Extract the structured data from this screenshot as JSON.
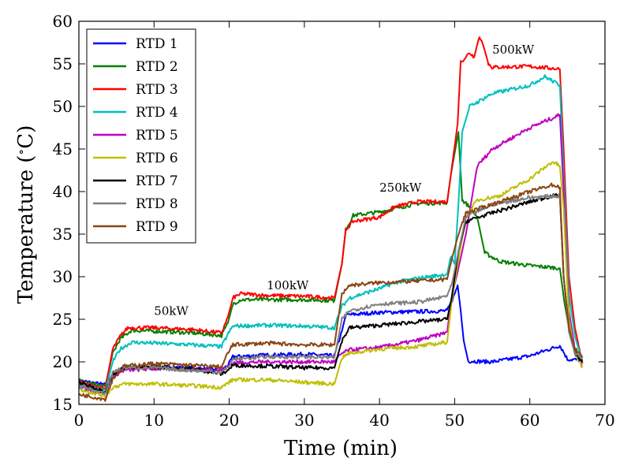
{
  "chart_data": {
    "type": "line",
    "xlabel": "Time (min)",
    "ylabel": "Temperature (°C)",
    "ylabel_parts": {
      "prefix": "Temperature (",
      "degree": "∘",
      "suffix": "C)"
    },
    "xlim": [
      0,
      70
    ],
    "ylim": [
      15,
      60
    ],
    "xticks": [
      0,
      10,
      20,
      30,
      40,
      50,
      60,
      70
    ],
    "yticks": [
      15,
      20,
      25,
      30,
      35,
      40,
      45,
      50,
      55,
      60
    ],
    "grid": false,
    "legend_position": "upper-left",
    "annotations": [
      {
        "text": "50kW",
        "x": 10,
        "y": 25.5
      },
      {
        "text": "100kW",
        "x": 25,
        "y": 28.5
      },
      {
        "text": "250kW",
        "x": 40,
        "y": 40.0
      },
      {
        "text": "500kW",
        "x": 55,
        "y": 56.2
      }
    ],
    "series": [
      {
        "name": "RTD 1",
        "color": "#0000ff",
        "points": [
          [
            0,
            17.8
          ],
          [
            3.5,
            17.3
          ],
          [
            4.5,
            18.6
          ],
          [
            5.5,
            19.2
          ],
          [
            10,
            19.4
          ],
          [
            15,
            19.3
          ],
          [
            19,
            19.0
          ],
          [
            20,
            19.8
          ],
          [
            20.5,
            20.6
          ],
          [
            25,
            20.8
          ],
          [
            30,
            20.9
          ],
          [
            34,
            20.7
          ],
          [
            35,
            23.6
          ],
          [
            35.5,
            25.5
          ],
          [
            40,
            25.8
          ],
          [
            45,
            25.9
          ],
          [
            49,
            26.0
          ],
          [
            49.8,
            27.5
          ],
          [
            50.4,
            29.0
          ],
          [
            50.8,
            26.0
          ],
          [
            51.2,
            22.5
          ],
          [
            51.8,
            20.1
          ],
          [
            55,
            20.0
          ],
          [
            60,
            20.7
          ],
          [
            64,
            21.9
          ],
          [
            64.6,
            21.0
          ],
          [
            65,
            20.3
          ],
          [
            67,
            20.2
          ]
        ]
      },
      {
        "name": "RTD 2",
        "color": "#008000",
        "points": [
          [
            0,
            17.7
          ],
          [
            3.5,
            17.1
          ],
          [
            4.5,
            21.0
          ],
          [
            5.5,
            22.7
          ],
          [
            7,
            23.7
          ],
          [
            10,
            23.6
          ],
          [
            15,
            23.4
          ],
          [
            19,
            23.1
          ],
          [
            19.8,
            24.5
          ],
          [
            20.5,
            26.8
          ],
          [
            21.5,
            27.3
          ],
          [
            25,
            27.3
          ],
          [
            30,
            27.3
          ],
          [
            34,
            27.2
          ],
          [
            35,
            31.5
          ],
          [
            35.5,
            35.5
          ],
          [
            36.5,
            37.2
          ],
          [
            40,
            37.6
          ],
          [
            45,
            38.6
          ],
          [
            49,
            38.7
          ],
          [
            49.5,
            42.0
          ],
          [
            50.5,
            47.0
          ],
          [
            51,
            39.0
          ],
          [
            52,
            38.2
          ],
          [
            53,
            37.0
          ],
          [
            54,
            32.8
          ],
          [
            56,
            31.8
          ],
          [
            60,
            31.3
          ],
          [
            64,
            31.0
          ],
          [
            64.6,
            27.0
          ],
          [
            65.5,
            22.5
          ],
          [
            67,
            20.0
          ]
        ]
      },
      {
        "name": "RTD 3",
        "color": "#ff0000",
        "points": [
          [
            0,
            17.6
          ],
          [
            3.5,
            16.8
          ],
          [
            4.5,
            21.5
          ],
          [
            5.5,
            23.0
          ],
          [
            6.5,
            24.0
          ],
          [
            10,
            24.0
          ],
          [
            15,
            23.8
          ],
          [
            19,
            23.4
          ],
          [
            19.8,
            25.2
          ],
          [
            20.5,
            27.5
          ],
          [
            21.5,
            28.0
          ],
          [
            25,
            27.8
          ],
          [
            30,
            27.7
          ],
          [
            34,
            27.5
          ],
          [
            35,
            31.5
          ],
          [
            35.5,
            35.5
          ],
          [
            36.5,
            36.5
          ],
          [
            40,
            37.0
          ],
          [
            42,
            38.2
          ],
          [
            45,
            38.8
          ],
          [
            49,
            38.8
          ],
          [
            49.5,
            42.0
          ],
          [
            50.4,
            48.0
          ],
          [
            50.8,
            55.2
          ],
          [
            52,
            56.3
          ],
          [
            52.6,
            55.8
          ],
          [
            53.3,
            58.3
          ],
          [
            53.8,
            57.2
          ],
          [
            54.5,
            55.0
          ],
          [
            55,
            54.6
          ],
          [
            60,
            54.7
          ],
          [
            64,
            54.4
          ],
          [
            64.5,
            45.0
          ],
          [
            65.2,
            30.0
          ],
          [
            66,
            24.0
          ],
          [
            67,
            19.8
          ]
        ]
      },
      {
        "name": "RTD 4",
        "color": "#00bfbf",
        "points": [
          [
            0,
            17.4
          ],
          [
            3.5,
            16.5
          ],
          [
            4.5,
            20.0
          ],
          [
            5.5,
            21.5
          ],
          [
            7,
            22.3
          ],
          [
            10,
            22.2
          ],
          [
            15,
            22.0
          ],
          [
            19,
            21.8
          ],
          [
            19.8,
            23.2
          ],
          [
            20.5,
            24.2
          ],
          [
            25,
            24.3
          ],
          [
            30,
            24.2
          ],
          [
            34,
            24.0
          ],
          [
            35,
            26.5
          ],
          [
            36,
            27.5
          ],
          [
            40,
            28.6
          ],
          [
            42,
            29.3
          ],
          [
            45,
            29.8
          ],
          [
            49,
            30.3
          ],
          [
            49.5,
            32.5
          ],
          [
            50,
            31.5
          ],
          [
            50.5,
            38.5
          ],
          [
            51,
            47.0
          ],
          [
            52,
            50.0
          ],
          [
            55,
            51.5
          ],
          [
            60,
            52.5
          ],
          [
            62,
            53.5
          ],
          [
            64,
            52.5
          ],
          [
            64.5,
            42.0
          ],
          [
            65.2,
            28.0
          ],
          [
            66,
            23.0
          ],
          [
            67,
            20.0
          ]
        ]
      },
      {
        "name": "RTD 5",
        "color": "#bf00bf",
        "points": [
          [
            0,
            17.1
          ],
          [
            3.5,
            16.3
          ],
          [
            4.5,
            18.3
          ],
          [
            6,
            19.0
          ],
          [
            10,
            19.2
          ],
          [
            15,
            19.1
          ],
          [
            19,
            19.0
          ],
          [
            19.8,
            19.4
          ],
          [
            20.5,
            19.9
          ],
          [
            25,
            20.0
          ],
          [
            30,
            20.0
          ],
          [
            34,
            20.0
          ],
          [
            35,
            21.0
          ],
          [
            36,
            21.4
          ],
          [
            40,
            21.7
          ],
          [
            45,
            22.5
          ],
          [
            48,
            23.2
          ],
          [
            49,
            23.5
          ],
          [
            49.6,
            27.5
          ],
          [
            50.5,
            31.0
          ],
          [
            51.5,
            35.0
          ],
          [
            53,
            43.0
          ],
          [
            55,
            45.0
          ],
          [
            60,
            47.5
          ],
          [
            64,
            49.0
          ],
          [
            64.5,
            40.0
          ],
          [
            65.2,
            26.0
          ],
          [
            66,
            21.5
          ],
          [
            67,
            19.5
          ]
        ]
      },
      {
        "name": "RTD 6",
        "color": "#bfbf00",
        "points": [
          [
            0,
            16.8
          ],
          [
            3.5,
            16.0
          ],
          [
            4.5,
            17.0
          ],
          [
            6,
            17.4
          ],
          [
            10,
            17.4
          ],
          [
            15,
            17.2
          ],
          [
            19,
            17.0
          ],
          [
            19.8,
            17.5
          ],
          [
            20.5,
            17.9
          ],
          [
            25,
            17.9
          ],
          [
            30,
            17.6
          ],
          [
            34,
            17.4
          ],
          [
            35,
            20.5
          ],
          [
            36,
            21.0
          ],
          [
            40,
            21.5
          ],
          [
            45,
            21.8
          ],
          [
            49,
            22.3
          ],
          [
            49.6,
            27.0
          ],
          [
            50.5,
            32.0
          ],
          [
            51.5,
            37.0
          ],
          [
            53,
            39.0
          ],
          [
            56,
            39.5
          ],
          [
            60,
            41.5
          ],
          [
            63,
            43.5
          ],
          [
            64,
            43.0
          ],
          [
            64.5,
            38.0
          ],
          [
            65.2,
            25.0
          ],
          [
            66,
            21.0
          ],
          [
            67,
            19.3
          ]
        ]
      },
      {
        "name": "RTD 7",
        "color": "#000000",
        "points": [
          [
            0,
            17.6
          ],
          [
            3.5,
            16.5
          ],
          [
            4.5,
            18.5
          ],
          [
            6,
            19.3
          ],
          [
            10,
            19.4
          ],
          [
            15,
            19.2
          ],
          [
            19,
            18.6
          ],
          [
            19.8,
            19.0
          ],
          [
            20.5,
            19.6
          ],
          [
            25,
            19.5
          ],
          [
            30,
            19.3
          ],
          [
            34,
            19.3
          ],
          [
            35,
            22.5
          ],
          [
            36,
            24.0
          ],
          [
            40,
            24.3
          ],
          [
            45,
            24.7
          ],
          [
            49,
            25.0
          ],
          [
            49.6,
            27.5
          ],
          [
            50.5,
            33.0
          ],
          [
            51.5,
            36.5
          ],
          [
            55,
            37.5
          ],
          [
            60,
            38.8
          ],
          [
            63,
            39.5
          ],
          [
            64,
            39.5
          ],
          [
            64.5,
            30.0
          ],
          [
            65.2,
            24.0
          ],
          [
            66,
            21.0
          ],
          [
            67,
            20.0
          ]
        ]
      },
      {
        "name": "RTD 8",
        "color": "#808080",
        "points": [
          [
            0,
            17.2
          ],
          [
            3.5,
            16.2
          ],
          [
            4.5,
            18.8
          ],
          [
            6,
            19.3
          ],
          [
            10,
            19.3
          ],
          [
            15,
            19.0
          ],
          [
            19,
            18.8
          ],
          [
            19.8,
            19.3
          ],
          [
            20.5,
            20.3
          ],
          [
            25,
            20.6
          ],
          [
            30,
            20.6
          ],
          [
            34,
            20.5
          ],
          [
            35,
            25.0
          ],
          [
            36,
            26.0
          ],
          [
            40,
            26.8
          ],
          [
            45,
            27.0
          ],
          [
            48,
            27.5
          ],
          [
            49,
            27.8
          ],
          [
            49.6,
            29.0
          ],
          [
            50.5,
            33.0
          ],
          [
            51.5,
            37.0
          ],
          [
            55,
            38.5
          ],
          [
            60,
            39.3
          ],
          [
            64,
            39.5
          ],
          [
            64.5,
            30.0
          ],
          [
            65.2,
            23.5
          ],
          [
            66,
            21.0
          ],
          [
            67,
            20.5
          ]
        ]
      },
      {
        "name": "RTD 9",
        "color": "#8b4513",
        "points": [
          [
            0,
            16.2
          ],
          [
            3.5,
            15.6
          ],
          [
            4.5,
            18.0
          ],
          [
            6,
            19.5
          ],
          [
            10,
            19.8
          ],
          [
            15,
            19.6
          ],
          [
            19,
            19.4
          ],
          [
            19.8,
            21.0
          ],
          [
            20.5,
            22.0
          ],
          [
            25,
            22.2
          ],
          [
            30,
            22.0
          ],
          [
            34,
            22.0
          ],
          [
            35,
            28.0
          ],
          [
            36,
            29.0
          ],
          [
            40,
            29.3
          ],
          [
            45,
            29.5
          ],
          [
            49,
            29.7
          ],
          [
            49.6,
            32.0
          ],
          [
            50.5,
            35.0
          ],
          [
            51.5,
            37.5
          ],
          [
            55,
            38.5
          ],
          [
            60,
            40.0
          ],
          [
            63,
            40.8
          ],
          [
            64,
            40.5
          ],
          [
            64.5,
            30.0
          ],
          [
            65.2,
            24.0
          ],
          [
            66,
            21.5
          ],
          [
            67,
            20.5
          ]
        ]
      }
    ]
  }
}
